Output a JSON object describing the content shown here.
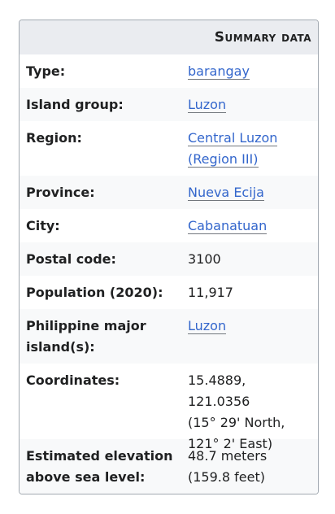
{
  "card": {
    "title": "Summary data"
  },
  "rows": [
    {
      "label": "Type:",
      "value": "barangay",
      "link": true
    },
    {
      "label": "Island group:",
      "value": "Luzon",
      "link": true
    },
    {
      "label": "Region:",
      "value_lines": [
        "Central Luzon",
        "(Region III)"
      ],
      "link": true
    },
    {
      "label": "Province:",
      "value": "Nueva Ecija",
      "link": true
    },
    {
      "label": "City:",
      "value": "Cabanatuan",
      "link": true
    },
    {
      "label": "Postal code:",
      "value": "3100",
      "link": false
    },
    {
      "label": "Population (2020):",
      "value": "11,917",
      "link": false
    },
    {
      "label_lines": [
        "Philippine major",
        "island(s):"
      ],
      "value": "Luzon",
      "link": true
    },
    {
      "label": "Coordinates:",
      "value_lines": [
        "15.4889, 121.0356",
        "(15° 29' North,",
        "121° 2' East)"
      ],
      "link": false
    },
    {
      "label_lines": [
        "Estimated elevation",
        "above sea level:"
      ],
      "value_lines": [
        "48.7 meters",
        "(159.8 feet)"
      ],
      "link": false
    }
  ],
  "colors": {
    "header_bg": "#eaecf0",
    "alt_row_bg": "#f8f9fa",
    "link": "#3366cc",
    "border": "#a2a9b1",
    "text": "#202122"
  }
}
